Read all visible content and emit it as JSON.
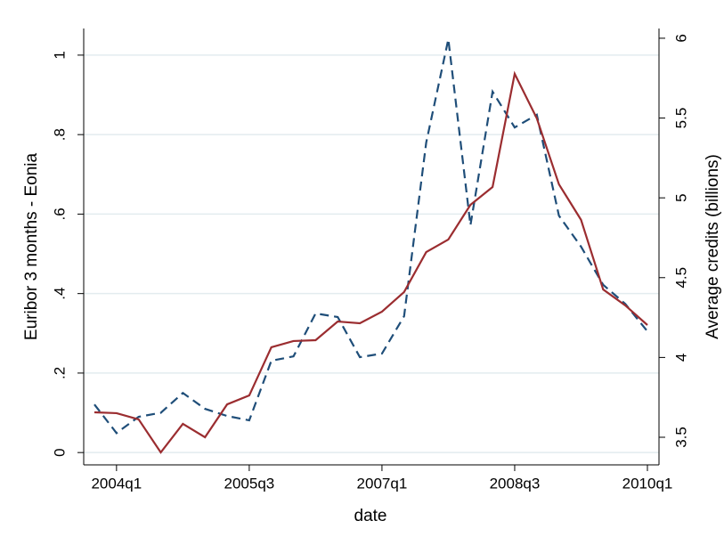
{
  "chart_data": {
    "type": "line",
    "x_label": "date",
    "y_label": "Euribor 3 months - Eonia",
    "y2_label": "Average credits (billions)",
    "categories": [
      null,
      "2004q1",
      null,
      null,
      null,
      null,
      null,
      "2005q3",
      null,
      null,
      null,
      null,
      null,
      "2007q1",
      null,
      null,
      null,
      null,
      null,
      "2008q3",
      null,
      null,
      null,
      null,
      null,
      "2010q1"
    ],
    "series": [
      {
        "color": "#1f4e79",
        "dash": "dashed",
        "values": [
          0.121,
          0.049,
          0.09,
          0.1,
          0.15,
          0.11,
          0.092,
          0.081,
          0.231,
          0.242,
          0.35,
          0.341,
          0.24,
          0.249,
          0.343,
          0.78,
          1.04,
          0.572,
          0.908,
          0.818,
          0.85,
          0.596,
          0.518,
          0.422,
          0.374,
          0.305
        ]
      },
      {
        "color": "#9b2d30",
        "dash": "solid",
        "axis": "y2",
        "values": [
          3.656,
          3.651,
          3.612,
          3.405,
          3.584,
          3.5,
          3.706,
          3.762,
          4.064,
          4.103,
          4.108,
          4.225,
          4.214,
          4.287,
          4.41,
          4.66,
          4.739,
          4.956,
          5.068,
          5.777,
          5.498,
          5.085,
          4.862,
          4.426,
          4.326,
          4.203
        ]
      }
    ],
    "ylim": [
      -0.031,
      1.067
    ],
    "yticks": [
      0,
      {
        "value": 0.2,
        "label": ".2"
      },
      {
        "value": 0.4,
        "label": ".4"
      },
      {
        "value": 0.6,
        "label": ".6"
      },
      {
        "value": 0.8,
        "label": ".8"
      },
      1
    ],
    "y2lim": [
      3.327,
      6.061
    ],
    "y2ticks": [
      3.5,
      4,
      4.5,
      5,
      5.5,
      6
    ],
    "grid": true
  }
}
